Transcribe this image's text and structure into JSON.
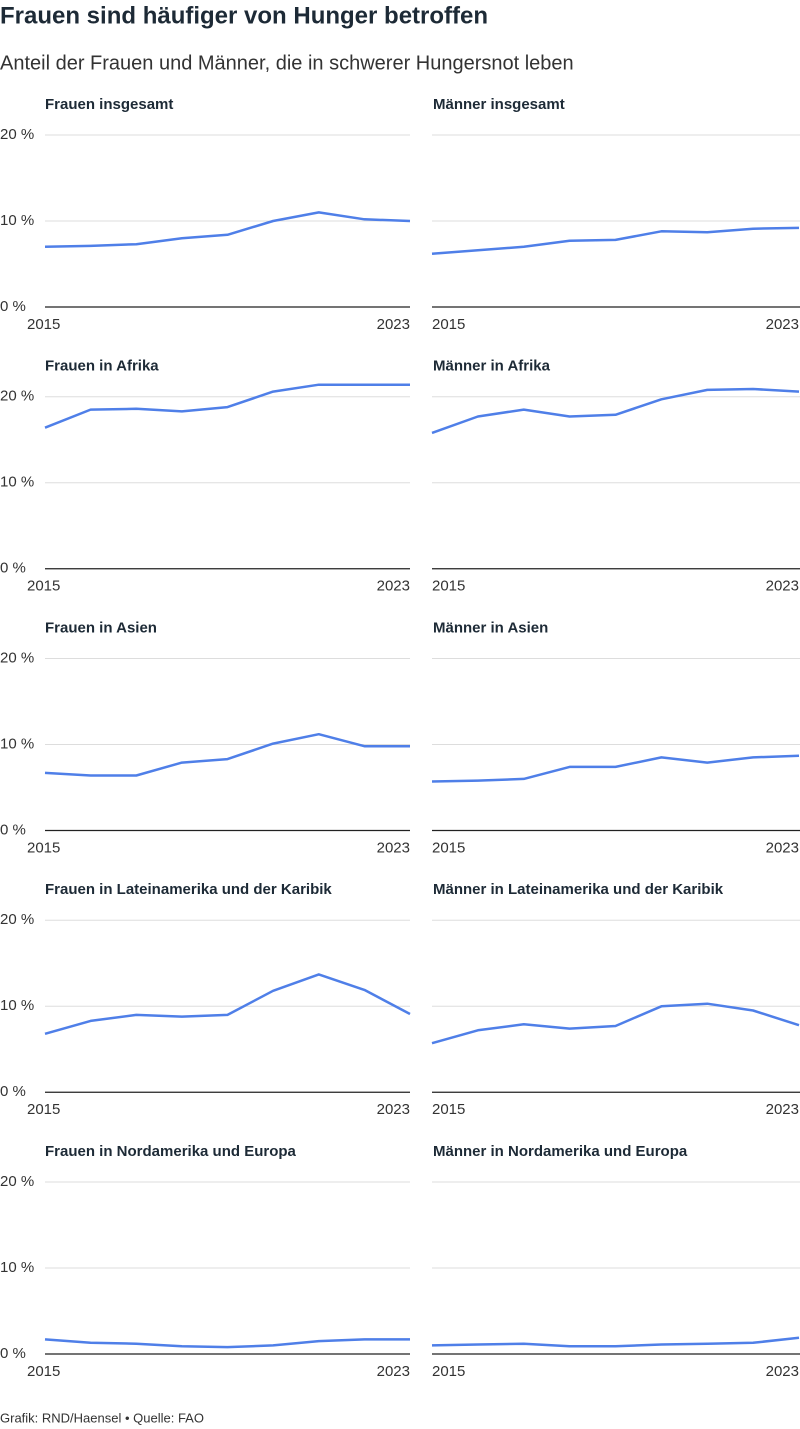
{
  "title": "Frauen sind häufiger von Hunger betroffen",
  "subtitle": "Anteil der Frauen und Männer, die in schwerer Hungersnot leben",
  "source": "Grafik: RND/Haensel • Quelle: FAO",
  "chart_data": [
    {
      "type": "line",
      "title": "Frauen insgesamt",
      "color": "#4f7fe8",
      "x": [
        2015,
        2016,
        2017,
        2018,
        2019,
        2020,
        2021,
        2022,
        2023
      ],
      "values": [
        7.0,
        7.1,
        7.3,
        8.0,
        8.4,
        10.0,
        11.0,
        10.2,
        10.0
      ],
      "xlim": [
        2015,
        2023
      ],
      "xticks": [
        2015,
        2023
      ],
      "ylim": [
        0,
        20
      ],
      "yticks": [
        {
          "value": 0,
          "label": "0 %"
        },
        {
          "value": 10,
          "label": "10 %"
        },
        {
          "value": 20,
          "label": "20 %"
        }
      ]
    },
    {
      "type": "line",
      "title": "Männer insgesamt",
      "color": "#4f7fe8",
      "x": [
        2015,
        2016,
        2017,
        2018,
        2019,
        2020,
        2021,
        2022,
        2023
      ],
      "values": [
        6.2,
        6.6,
        7.0,
        7.7,
        7.8,
        8.8,
        8.7,
        9.1,
        9.2
      ],
      "xlim": [
        2015,
        2023
      ],
      "xticks": [
        2015,
        2023
      ],
      "ylim": [
        0,
        20
      ],
      "yticks": [
        0,
        10,
        20
      ]
    },
    {
      "type": "line",
      "title": "Frauen in Afrika",
      "color": "#4f7fe8",
      "x": [
        2015,
        2016,
        2017,
        2018,
        2019,
        2020,
        2021,
        2022,
        2023
      ],
      "values": [
        16.4,
        18.5,
        18.6,
        18.3,
        18.8,
        20.6,
        21.4,
        21.4,
        21.4
      ],
      "xlim": [
        2015,
        2023
      ],
      "xticks": [
        2015,
        2023
      ],
      "ylim": [
        0,
        20
      ],
      "yticks": [
        {
          "value": 0,
          "label": "0 %"
        },
        {
          "value": 10,
          "label": "10 %"
        },
        {
          "value": 20,
          "label": "20 %"
        }
      ]
    },
    {
      "type": "line",
      "title": "Männer in Afrika",
      "color": "#4f7fe8",
      "x": [
        2015,
        2016,
        2017,
        2018,
        2019,
        2020,
        2021,
        2022,
        2023
      ],
      "values": [
        15.8,
        17.7,
        18.5,
        17.7,
        17.9,
        19.7,
        20.8,
        20.9,
        20.6
      ],
      "xlim": [
        2015,
        2023
      ],
      "xticks": [
        2015,
        2023
      ],
      "ylim": [
        0,
        20
      ],
      "yticks": [
        0,
        10,
        20
      ]
    },
    {
      "type": "line",
      "title": "Frauen in Asien",
      "color": "#4f7fe8",
      "x": [
        2015,
        2016,
        2017,
        2018,
        2019,
        2020,
        2021,
        2022,
        2023
      ],
      "values": [
        6.7,
        6.4,
        6.4,
        7.9,
        8.3,
        10.1,
        11.2,
        9.8,
        9.8
      ],
      "xlim": [
        2015,
        2023
      ],
      "xticks": [
        2015,
        2023
      ],
      "ylim": [
        0,
        20
      ],
      "yticks": [
        {
          "value": 0,
          "label": "0 %"
        },
        {
          "value": 10,
          "label": "10 %"
        },
        {
          "value": 20,
          "label": "20 %"
        }
      ]
    },
    {
      "type": "line",
      "title": "Männer in Asien",
      "color": "#4f7fe8",
      "x": [
        2015,
        2016,
        2017,
        2018,
        2019,
        2020,
        2021,
        2022,
        2023
      ],
      "values": [
        5.7,
        5.8,
        6.0,
        7.4,
        7.4,
        8.5,
        7.9,
        8.5,
        8.7
      ],
      "xlim": [
        2015,
        2023
      ],
      "xticks": [
        2015,
        2023
      ],
      "ylim": [
        0,
        20
      ],
      "yticks": [
        0,
        10,
        20
      ]
    },
    {
      "type": "line",
      "title": "Frauen in Lateinamerika und der Karibik",
      "color": "#4f7fe8",
      "x": [
        2015,
        2016,
        2017,
        2018,
        2019,
        2020,
        2021,
        2022,
        2023
      ],
      "values": [
        6.8,
        8.3,
        9.0,
        8.8,
        9.0,
        11.8,
        13.7,
        11.9,
        9.1
      ],
      "xlim": [
        2015,
        2023
      ],
      "xticks": [
        2015,
        2023
      ],
      "ylim": [
        0,
        20
      ],
      "yticks": [
        {
          "value": 0,
          "label": "0 %"
        },
        {
          "value": 10,
          "label": "10 %"
        },
        {
          "value": 20,
          "label": "20 %"
        }
      ]
    },
    {
      "type": "line",
      "title": "Männer in Lateinamerika und der Karibik",
      "color": "#4f7fe8",
      "x": [
        2015,
        2016,
        2017,
        2018,
        2019,
        2020,
        2021,
        2022,
        2023
      ],
      "values": [
        5.7,
        7.2,
        7.9,
        7.4,
        7.7,
        10.0,
        10.3,
        9.5,
        7.8
      ],
      "xlim": [
        2015,
        2023
      ],
      "xticks": [
        2015,
        2023
      ],
      "ylim": [
        0,
        20
      ],
      "yticks": [
        0,
        10,
        20
      ]
    },
    {
      "type": "line",
      "title": "Frauen in Nordamerika und Europa",
      "color": "#4f7fe8",
      "x": [
        2015,
        2016,
        2017,
        2018,
        2019,
        2020,
        2021,
        2022,
        2023
      ],
      "values": [
        1.7,
        1.3,
        1.2,
        0.9,
        0.8,
        1.0,
        1.5,
        1.7,
        1.7
      ],
      "xlim": [
        2015,
        2023
      ],
      "xticks": [
        2015,
        2023
      ],
      "ylim": [
        0,
        20
      ],
      "yticks": [
        {
          "value": 0,
          "label": "0 %"
        },
        {
          "value": 10,
          "label": "10 %"
        },
        {
          "value": 20,
          "label": "20 %"
        }
      ]
    },
    {
      "type": "line",
      "title": "Männer in Nordamerika und Europa",
      "color": "#4f7fe8",
      "x": [
        2015,
        2016,
        2017,
        2018,
        2019,
        2020,
        2021,
        2022,
        2023
      ],
      "values": [
        1.0,
        1.1,
        1.2,
        0.9,
        0.9,
        1.1,
        1.2,
        1.3,
        1.9
      ],
      "xlim": [
        2015,
        2023
      ],
      "xticks": [
        2015,
        2023
      ],
      "ylim": [
        0,
        20
      ],
      "yticks": [
        0,
        10,
        20
      ]
    }
  ]
}
